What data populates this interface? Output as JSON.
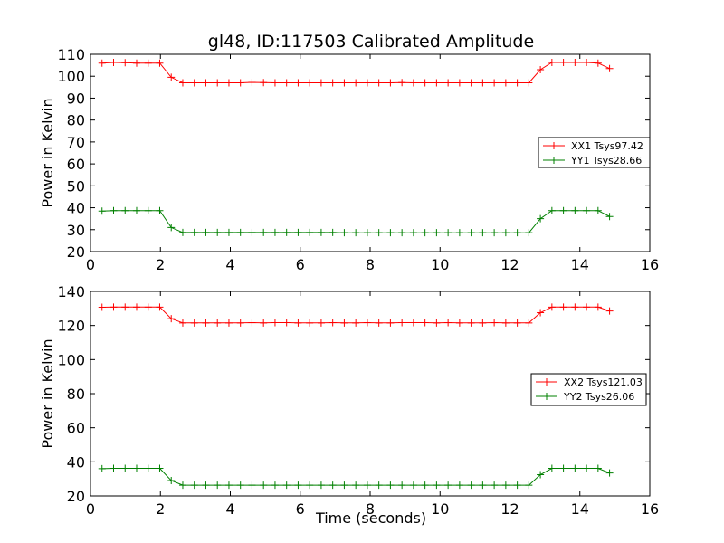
{
  "figure": {
    "title": "gl48, ID:117503 Calibrated Amplitude",
    "xlabel": "Time (seconds)"
  },
  "chart_data": [
    {
      "type": "line",
      "ylabel": "Power in Kelvin",
      "xlim": [
        0,
        16
      ],
      "ylim": [
        20,
        110
      ],
      "xticks": [
        0,
        2,
        4,
        6,
        8,
        10,
        12,
        14,
        16
      ],
      "yticks": [
        20,
        30,
        40,
        50,
        60,
        70,
        80,
        90,
        100,
        110
      ],
      "legend_position": "center-right",
      "x": [
        0.33,
        0.66,
        0.99,
        1.32,
        1.65,
        1.98,
        2.31,
        2.64,
        2.97,
        3.3,
        3.63,
        3.96,
        4.29,
        4.62,
        4.95,
        5.28,
        5.61,
        5.94,
        6.27,
        6.6,
        6.93,
        7.26,
        7.59,
        7.92,
        8.25,
        8.58,
        8.91,
        9.24,
        9.57,
        9.9,
        10.23,
        10.56,
        10.89,
        11.22,
        11.55,
        11.88,
        12.21,
        12.54,
        12.87,
        13.2,
        13.53,
        13.86,
        14.19,
        14.52,
        14.85
      ],
      "series": [
        {
          "name": "XX1 Tsys97.42",
          "color": "#ff0000",
          "values": [
            106,
            106.3,
            106.2,
            106,
            106,
            106,
            99.5,
            97,
            97,
            97,
            97,
            97,
            97,
            97.2,
            97.1,
            97,
            97,
            97,
            97,
            97,
            97,
            97,
            97,
            97,
            97,
            97,
            97.1,
            97,
            97,
            97,
            97,
            97,
            97,
            97,
            97,
            97,
            97,
            97,
            103,
            106.3,
            106.3,
            106.3,
            106.3,
            106,
            103.5
          ]
        },
        {
          "name": "YY1 Tsys28.66",
          "color": "#008000",
          "values": [
            38.5,
            38.7,
            38.7,
            38.7,
            38.7,
            38.7,
            31,
            28.7,
            28.7,
            28.7,
            28.7,
            28.7,
            28.7,
            28.7,
            28.7,
            28.7,
            28.7,
            28.7,
            28.7,
            28.7,
            28.7,
            28.6,
            28.6,
            28.6,
            28.6,
            28.6,
            28.6,
            28.6,
            28.6,
            28.6,
            28.6,
            28.6,
            28.6,
            28.6,
            28.6,
            28.6,
            28.6,
            28.6,
            35,
            38.7,
            38.7,
            38.7,
            38.7,
            38.7,
            36
          ]
        }
      ]
    },
    {
      "type": "line",
      "ylabel": "Power in Kelvin",
      "xlim": [
        0,
        16
      ],
      "ylim": [
        20,
        140
      ],
      "xticks": [
        0,
        2,
        4,
        6,
        8,
        10,
        12,
        14,
        16
      ],
      "yticks": [
        20,
        40,
        60,
        80,
        100,
        120,
        140
      ],
      "legend_position": "center-right",
      "x": [
        0.33,
        0.66,
        0.99,
        1.32,
        1.65,
        1.98,
        2.31,
        2.64,
        2.97,
        3.3,
        3.63,
        3.96,
        4.29,
        4.62,
        4.95,
        5.28,
        5.61,
        5.94,
        6.27,
        6.6,
        6.93,
        7.26,
        7.59,
        7.92,
        8.25,
        8.58,
        8.91,
        9.24,
        9.57,
        9.9,
        10.23,
        10.56,
        10.89,
        11.22,
        11.55,
        11.88,
        12.21,
        12.54,
        12.87,
        13.2,
        13.53,
        13.86,
        14.19,
        14.52,
        14.85
      ],
      "series": [
        {
          "name": "XX2 Tsys121.03",
          "color": "#ff0000",
          "values": [
            130.7,
            130.8,
            130.8,
            130.8,
            130.8,
            130.8,
            124,
            121.5,
            121.5,
            121.5,
            121.5,
            121.5,
            121.5,
            121.7,
            121.5,
            121.7,
            121.7,
            121.5,
            121.5,
            121.5,
            121.7,
            121.5,
            121.5,
            121.7,
            121.5,
            121.5,
            121.7,
            121.7,
            121.7,
            121.5,
            121.7,
            121.5,
            121.5,
            121.5,
            121.7,
            121.5,
            121.5,
            121.5,
            127.5,
            130.8,
            130.8,
            130.8,
            130.8,
            130.8,
            128.5
          ]
        },
        {
          "name": "YY2 Tsys26.06",
          "color": "#008000",
          "values": [
            36,
            36.2,
            36.2,
            36.2,
            36.2,
            36.2,
            29,
            26.3,
            26.3,
            26.3,
            26.3,
            26.3,
            26.3,
            26.3,
            26.3,
            26.3,
            26.3,
            26.3,
            26.3,
            26.3,
            26.3,
            26.3,
            26.3,
            26.3,
            26.3,
            26.3,
            26.3,
            26.3,
            26.3,
            26.3,
            26.3,
            26.3,
            26.3,
            26.3,
            26.3,
            26.3,
            26.3,
            26.3,
            32.5,
            36.2,
            36.2,
            36.2,
            36.2,
            36.2,
            33.5
          ]
        }
      ]
    }
  ]
}
